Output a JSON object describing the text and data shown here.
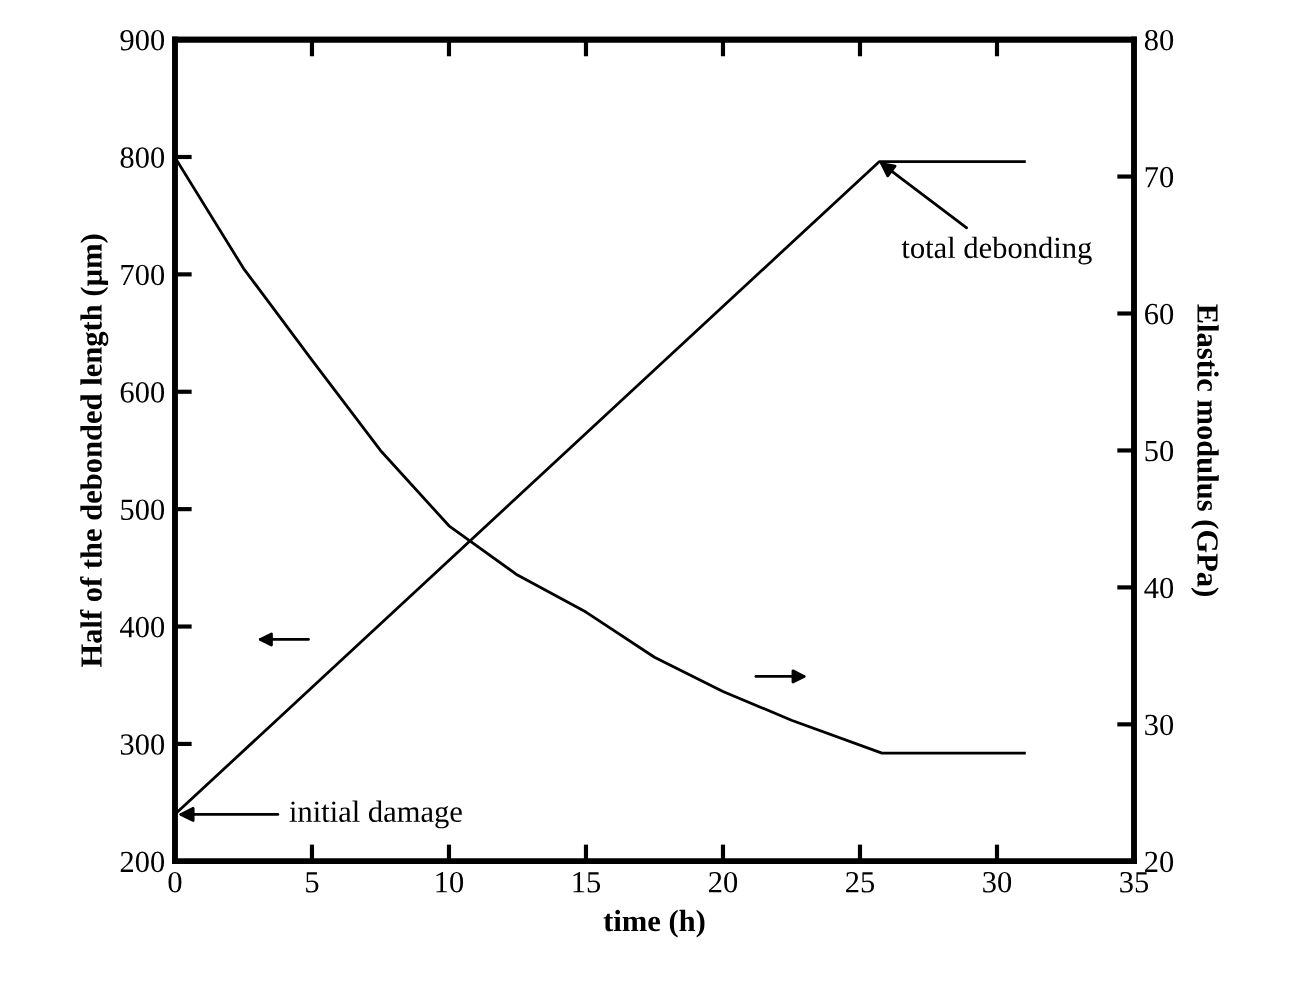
{
  "chart_data": {
    "type": "line",
    "xlabel": "time (h)",
    "ylabel": "Half of the debonded length (µm)",
    "y2label": "Elastic modulus (GPa)",
    "xlim": [
      0,
      35
    ],
    "xticks": [
      0,
      5,
      10,
      15,
      20,
      25,
      30,
      35
    ],
    "ylim": [
      200,
      900
    ],
    "yticks": [
      200,
      300,
      400,
      500,
      600,
      700,
      800,
      900
    ],
    "y2lim": [
      20,
      80
    ],
    "y2ticks": [
      20,
      30,
      40,
      50,
      60,
      70,
      80
    ],
    "series": [
      {
        "color": "#000000",
        "x": [
          0,
          25.7,
          31
        ],
        "values": [
          240,
          796,
          796
        ]
      },
      {
        "color": "#000000",
        "axis": "y2",
        "x": [
          0,
          2.5,
          5,
          7.5,
          10,
          12.5,
          15,
          17.5,
          20,
          22.5,
          25.8,
          31
        ],
        "values": [
          71.4,
          63.3,
          56.6,
          50.0,
          44.5,
          40.9,
          38.2,
          34.9,
          32.4,
          30.3,
          27.9,
          27.9
        ]
      }
    ],
    "annotations": [
      "initial damage",
      {
        "text": "total debonding",
        "x": 25.7,
        "y": 796
      }
    ],
    "grid": false,
    "legend": false,
    "marker": "none",
    "line_style": "solid"
  }
}
